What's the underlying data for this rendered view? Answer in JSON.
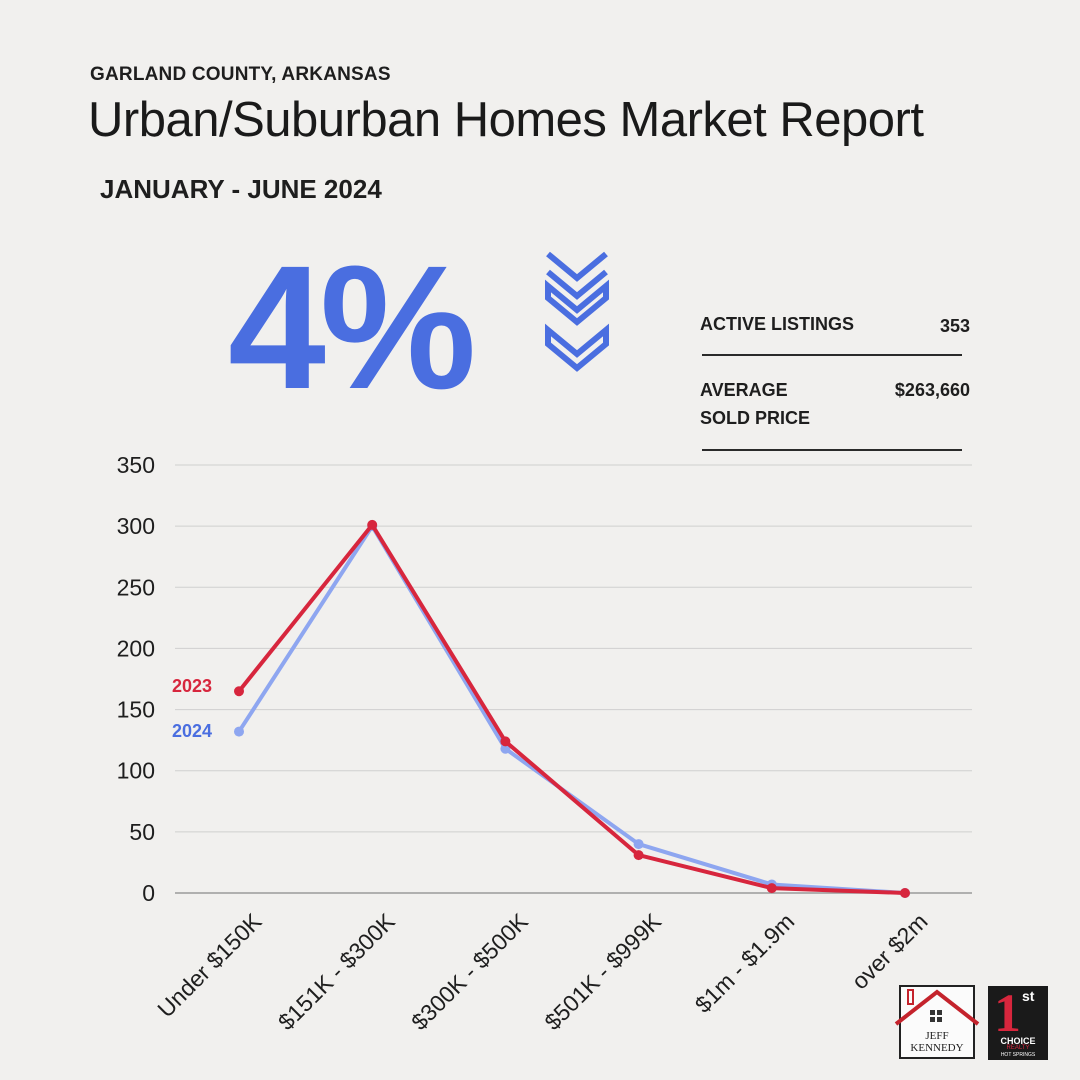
{
  "header": {
    "region": "GARLAND COUNTY, ARKANSAS",
    "title": "Urban/Suburban Homes Market Report",
    "period": "JANUARY - JUNE 2024"
  },
  "highlight": {
    "percent": "4%",
    "icon": "triple-chevron-down-icon",
    "color": "#4a6ee0"
  },
  "stats": {
    "active_listings_label": "ACTIVE LISTINGS",
    "active_listings_value": "353",
    "avg_price_label_line1": "AVERAGE",
    "avg_price_label_line2": "SOLD PRICE",
    "avg_price_value": "$263,660"
  },
  "chart_data": {
    "type": "line",
    "categories": [
      "Under $150K",
      "$151K - $300K",
      "$300K - $500K",
      "$501K - $999K",
      "$1m - $1.9m",
      "over $2m"
    ],
    "series": [
      {
        "name": "2023",
        "color": "#d7263d",
        "values": [
          165,
          301,
          124,
          31,
          4,
          0
        ]
      },
      {
        "name": "2024",
        "color": "#8ea6f0",
        "values": [
          132,
          300,
          118,
          40,
          7,
          0
        ]
      }
    ],
    "yticks": [
      0,
      50,
      100,
      150,
      200,
      250,
      300,
      350
    ],
    "ylim": [
      0,
      350
    ],
    "grid": true
  },
  "logos": {
    "jeff_line1": "JEFF",
    "jeff_line2": "KENNEDY",
    "choice_top": "1",
    "choice_sup": "st",
    "choice_mid": "CHOICE",
    "choice_realty": "REALTY",
    "choice_city": "HOT SPRINGS"
  }
}
